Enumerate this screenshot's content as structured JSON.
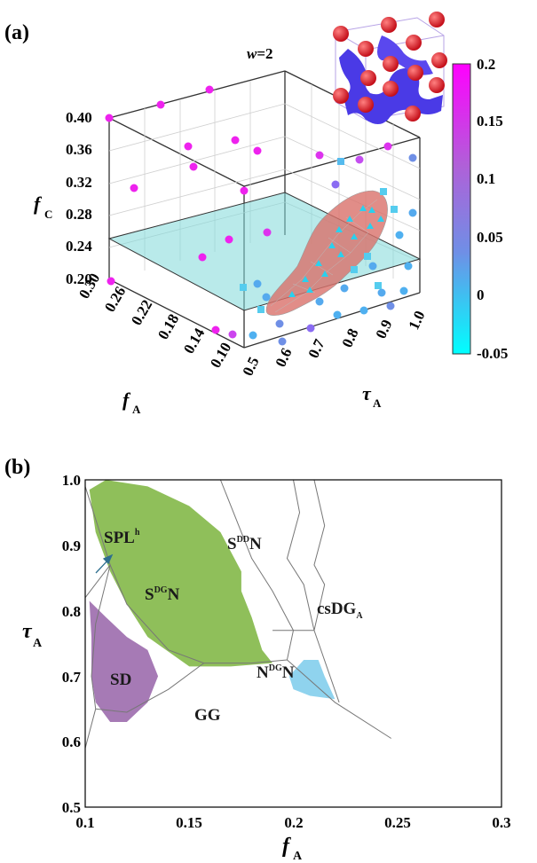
{
  "panel_a": {
    "label": "(a)",
    "w_label_italic": "w",
    "w_label_value": "=2",
    "z_axis_label": "f",
    "z_axis_sub": "C",
    "fA_axis_label": "f",
    "fA_axis_sub": "A",
    "tauA_axis_label": "τ",
    "tauA_axis_sub": "A",
    "z_ticks": [
      "0.40",
      "0.36",
      "0.32",
      "0.28",
      "0.24",
      "0.20"
    ],
    "fA_ticks": [
      "0.30",
      "0.26",
      "0.22",
      "0.18",
      "0.14",
      "0.10"
    ],
    "tauA_ticks": [
      "0.5",
      "0.6",
      "0.7",
      "0.8",
      "0.9",
      "1.0"
    ],
    "colorbar": {
      "ticks": [
        "0.2",
        "0.15",
        "0.1",
        "0.05",
        "0",
        "-0.05"
      ],
      "top_color": "#ff00ff",
      "bottom_color": "#00ffff"
    },
    "plane_color": "#7fd8d8",
    "surface_color": "#d9706a",
    "inset_sphere_color": "#e8202a",
    "inset_network_color": "#4a3ae6"
  },
  "panel_b": {
    "label": "(b)",
    "x_label": "f",
    "x_sub": "A",
    "y_label": "τ",
    "y_sub": "A",
    "x_ticks": [
      "0.1",
      "0.15",
      "0.2",
      "0.25",
      "0.3"
    ],
    "y_ticks": [
      "1.0",
      "0.9",
      "0.8",
      "0.7",
      "0.6",
      "0.5"
    ],
    "regions": [
      {
        "main": "SPL",
        "sup": "h",
        "tail": ""
      },
      {
        "main": "S",
        "sup": "DG",
        "tail": "N"
      },
      {
        "main": "S",
        "sup": "DD",
        "tail": "N"
      },
      {
        "main": "csDG",
        "sub": "A",
        "tail": ""
      },
      {
        "main": "N",
        "sup": "DG",
        "tail": "N"
      },
      {
        "main": "SD",
        "sup": "",
        "tail": ""
      },
      {
        "main": "GG",
        "sup": "",
        "tail": ""
      }
    ],
    "fill_colors": {
      "green": "#8fbf5a",
      "purple": "#a67ab5",
      "cyan": "#8fd3ee"
    }
  },
  "chart_data": [
    {
      "type": "scatter",
      "title": "w=2",
      "xlabel": "fA",
      "ylabel": "τA",
      "zlabel": "fC",
      "xlim": [
        0.1,
        0.3
      ],
      "ylim": [
        0.5,
        1.0
      ],
      "zlim": [
        0.2,
        0.4
      ],
      "colorbar_range": [
        -0.05,
        0.2
      ],
      "plane_fC": 0.24
    },
    {
      "type": "area",
      "xlabel": "fA",
      "ylabel": "τA",
      "xlim": [
        0.1,
        0.3
      ],
      "ylim": [
        0.5,
        1.0
      ],
      "boundaries": [
        {
          "name": "b1",
          "points": [
            [
              0.1,
              0.99
            ],
            [
              0.112,
              0.87
            ],
            [
              0.1,
              0.82
            ]
          ]
        },
        {
          "name": "b2",
          "points": [
            [
              0.112,
              0.87
            ],
            [
              0.12,
              0.81
            ],
            [
              0.14,
              0.74
            ],
            [
              0.157,
              0.72
            ],
            [
              0.18,
              0.72
            ],
            [
              0.197,
              0.725
            ]
          ]
        },
        {
          "name": "b3",
          "points": [
            [
              0.165,
              1.0
            ],
            [
              0.18,
              0.88
            ],
            [
              0.19,
              0.83
            ],
            [
              0.2,
              0.77
            ],
            [
              0.197,
              0.725
            ]
          ]
        },
        {
          "name": "b4",
          "points": [
            [
              0.197,
              0.725
            ],
            [
              0.22,
              0.66
            ],
            [
              0.247,
              0.605
            ]
          ]
        },
        {
          "name": "b5",
          "points": [
            [
              0.19,
              0.77
            ],
            [
              0.21,
              0.77
            ],
            [
              0.222,
              0.66
            ]
          ]
        },
        {
          "name": "b6",
          "points": [
            [
              0.21,
              1.0
            ],
            [
              0.215,
              0.93
            ],
            [
              0.21,
              0.87
            ],
            [
              0.215,
              0.84
            ],
            [
              0.21,
              0.77
            ]
          ]
        },
        {
          "name": "b7",
          "points": [
            [
              0.2,
              1.0
            ],
            [
              0.203,
              0.95
            ],
            [
              0.197,
              0.88
            ],
            [
              0.205,
              0.84
            ],
            [
              0.21,
              0.77
            ]
          ]
        },
        {
          "name": "b8",
          "points": [
            [
              0.112,
              0.87
            ],
            [
              0.105,
              0.78
            ],
            [
              0.103,
              0.7
            ],
            [
              0.105,
              0.65
            ],
            [
              0.1,
              0.59
            ]
          ]
        },
        {
          "name": "b9",
          "points": [
            [
              0.105,
              0.65
            ],
            [
              0.12,
              0.645
            ],
            [
              0.14,
              0.68
            ],
            [
              0.157,
              0.72
            ]
          ]
        }
      ],
      "fills": [
        {
          "name": "SPLh/SDGN region",
          "color": "green",
          "points": [
            [
              0.102,
              0.985
            ],
            [
              0.11,
              1.0
            ],
            [
              0.13,
              0.99
            ],
            [
              0.15,
              0.96
            ],
            [
              0.165,
              0.92
            ],
            [
              0.175,
              0.86
            ],
            [
              0.175,
              0.83
            ],
            [
              0.18,
              0.79
            ],
            [
              0.185,
              0.74
            ],
            [
              0.19,
              0.72
            ],
            [
              0.17,
              0.715
            ],
            [
              0.15,
              0.715
            ],
            [
              0.13,
              0.76
            ],
            [
              0.12,
              0.81
            ],
            [
              0.112,
              0.86
            ],
            [
              0.105,
              0.92
            ]
          ]
        },
        {
          "name": "SD region",
          "color": "purple",
          "points": [
            [
              0.102,
              0.815
            ],
            [
              0.11,
              0.79
            ],
            [
              0.12,
              0.76
            ],
            [
              0.13,
              0.74
            ],
            [
              0.135,
              0.7
            ],
            [
              0.13,
              0.66
            ],
            [
              0.12,
              0.63
            ],
            [
              0.112,
              0.63
            ],
            [
              0.105,
              0.66
            ],
            [
              0.103,
              0.7
            ],
            [
              0.103,
              0.76
            ]
          ]
        },
        {
          "name": "NDGN region",
          "color": "cyan",
          "points": [
            [
              0.198,
              0.7
            ],
            [
              0.205,
              0.725
            ],
            [
              0.212,
              0.725
            ],
            [
              0.215,
              0.7
            ],
            [
              0.22,
              0.665
            ],
            [
              0.208,
              0.67
            ],
            [
              0.2,
              0.68
            ]
          ]
        }
      ]
    }
  ]
}
